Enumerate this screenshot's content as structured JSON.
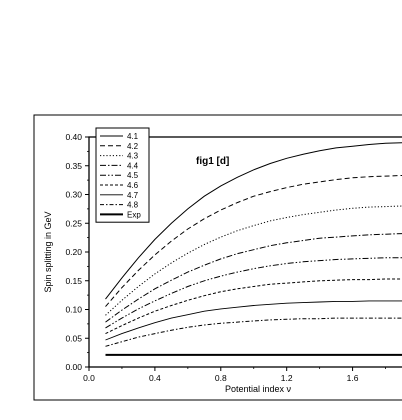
{
  "chart_data": {
    "type": "line",
    "annotation": "fig1 [d]",
    "xlabel": "Potential index ν",
    "ylabel": "Spin splitting in GeV",
    "xlim": [
      0.0,
      1.9
    ],
    "ylim": [
      0.0,
      0.4
    ],
    "x_ticks": [
      "0.0",
      "0.4",
      "0.8",
      "1.2",
      "1.6"
    ],
    "y_ticks": [
      "0.00",
      "0.05",
      "0.10",
      "0.15",
      "0.20",
      "0.25",
      "0.30",
      "0.35",
      "0.40"
    ],
    "grid": false,
    "legend_position": "top-left",
    "x": [
      0.1,
      0.2,
      0.3,
      0.4,
      0.5,
      0.6,
      0.7,
      0.8,
      0.9,
      1.0,
      1.1,
      1.2,
      1.3,
      1.4,
      1.5,
      1.6,
      1.7,
      1.8,
      1.9
    ],
    "series": [
      {
        "name": "4.1",
        "dash": "solid",
        "values": [
          0.118,
          0.155,
          0.19,
          0.222,
          0.25,
          0.275,
          0.297,
          0.315,
          0.33,
          0.343,
          0.354,
          0.363,
          0.37,
          0.376,
          0.381,
          0.384,
          0.387,
          0.389,
          0.39
        ]
      },
      {
        "name": "4.2",
        "dash": "dash",
        "values": [
          0.105,
          0.138,
          0.168,
          0.195,
          0.219,
          0.24,
          0.258,
          0.273,
          0.286,
          0.297,
          0.305,
          0.312,
          0.318,
          0.322,
          0.326,
          0.329,
          0.331,
          0.332,
          0.333
        ]
      },
      {
        "name": "4.3",
        "dash": "dot",
        "values": [
          0.09,
          0.116,
          0.14,
          0.162,
          0.181,
          0.198,
          0.213,
          0.226,
          0.237,
          0.246,
          0.254,
          0.26,
          0.265,
          0.269,
          0.273,
          0.276,
          0.278,
          0.279,
          0.28
        ]
      },
      {
        "name": "4.4",
        "dash": "dashdot",
        "values": [
          0.078,
          0.099,
          0.118,
          0.136,
          0.151,
          0.165,
          0.177,
          0.188,
          0.197,
          0.204,
          0.211,
          0.216,
          0.22,
          0.224,
          0.226,
          0.228,
          0.23,
          0.231,
          0.232
        ]
      },
      {
        "name": "4.5",
        "dash": "dashdotdot",
        "values": [
          0.068,
          0.085,
          0.101,
          0.115,
          0.128,
          0.14,
          0.15,
          0.158,
          0.165,
          0.171,
          0.176,
          0.18,
          0.183,
          0.185,
          0.187,
          0.188,
          0.189,
          0.19,
          0.19
        ]
      },
      {
        "name": "4.6",
        "dash": "shortdash",
        "values": [
          0.058,
          0.072,
          0.085,
          0.097,
          0.107,
          0.116,
          0.124,
          0.131,
          0.136,
          0.14,
          0.144,
          0.146,
          0.148,
          0.15,
          0.151,
          0.152,
          0.152,
          0.153,
          0.153
        ]
      },
      {
        "name": "4.7",
        "dash": "solid-thin",
        "values": [
          0.047,
          0.058,
          0.068,
          0.077,
          0.085,
          0.091,
          0.097,
          0.101,
          0.104,
          0.107,
          0.109,
          0.111,
          0.112,
          0.113,
          0.114,
          0.114,
          0.115,
          0.115,
          0.115
        ]
      },
      {
        "name": "4.8",
        "dash": "dashdot-short",
        "values": [
          0.036,
          0.044,
          0.052,
          0.058,
          0.064,
          0.069,
          0.073,
          0.076,
          0.078,
          0.08,
          0.082,
          0.083,
          0.084,
          0.084,
          0.085,
          0.085,
          0.085,
          0.085,
          0.085
        ]
      },
      {
        "name": "Exp",
        "dash": "solid-thick",
        "values": [
          0.021,
          0.021,
          0.021,
          0.021,
          0.021,
          0.021,
          0.021,
          0.021,
          0.021,
          0.021,
          0.021,
          0.021,
          0.021,
          0.021,
          0.021,
          0.021,
          0.021,
          0.021,
          0.021
        ]
      }
    ]
  }
}
